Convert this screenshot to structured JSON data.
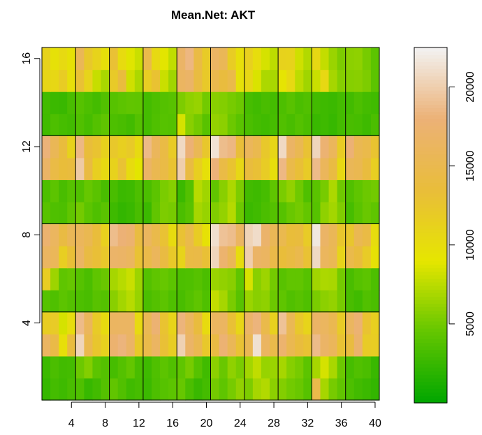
{
  "chart_data": {
    "type": "heatmap",
    "title": "Mean.Net:  AKT",
    "x_ticks": [
      4,
      8,
      12,
      16,
      20,
      24,
      28,
      32,
      36,
      40
    ],
    "y_ticks": [
      4,
      8,
      12,
      16
    ],
    "xlim": [
      0.5,
      40.5
    ],
    "ylim": [
      0.5,
      16.5
    ],
    "block_cols": 4,
    "block_rows": 4,
    "grid_blocks": true,
    "colorbar": {
      "position": "right",
      "ticks": [
        5000,
        10000,
        15000,
        20000
      ],
      "range": [
        0,
        22500
      ],
      "colors": [
        "#00a600",
        "#63c600",
        "#e6e600",
        "#e9bd3a",
        "#ecb176",
        "#f2f2f2"
      ]
    },
    "cells": [
      [
        2400,
        3100,
        2800,
        3300,
        3600,
        2500,
        3000,
        3800,
        4400,
        3700,
        2900,
        3200,
        2700,
        3500,
        3900,
        4200,
        4600,
        3400,
        2600,
        3100,
        5100,
        4300,
        5200,
        6100,
        5400,
        6800,
        7200,
        5900,
        5600,
        5000,
        4700,
        3900,
        14800,
        6800,
        5200,
        4400,
        3500,
        3000,
        2700,
        2300
      ],
      [
        2700,
        3400,
        3000,
        3100,
        4800,
        5600,
        4200,
        3800,
        3200,
        3800,
        4500,
        3300,
        2800,
        3600,
        4200,
        3700,
        4300,
        5200,
        3900,
        2900,
        5900,
        4700,
        6000,
        5300,
        6700,
        7700,
        6300,
        6400,
        6800,
        5700,
        5200,
        4200,
        6800,
        8400,
        6900,
        4800,
        3200,
        3700,
        3400,
        2600
      ],
      [
        16500,
        14500,
        9800,
        13800,
        20500,
        15000,
        12500,
        11300,
        17500,
        18200,
        16800,
        12200,
        14800,
        16500,
        13200,
        11700,
        20200,
        16900,
        15200,
        12300,
        14200,
        17800,
        15700,
        13000,
        15500,
        21300,
        16400,
        14800,
        17400,
        15200,
        13800,
        13000,
        18700,
        16800,
        16000,
        13000,
        13900,
        17200,
        12000,
        11700
      ],
      [
        11700,
        12000,
        8400,
        10000,
        18700,
        16000,
        12000,
        10200,
        16400,
        16500,
        16500,
        10300,
        15500,
        17700,
        12800,
        11000,
        18200,
        16300,
        13700,
        10200,
        16300,
        16400,
        13200,
        10800,
        17000,
        18200,
        14800,
        11300,
        19200,
        15500,
        12300,
        11000,
        16800,
        16300,
        15200,
        12000,
        16300,
        17700,
        12800,
        11500
      ],
      [
        3900,
        3600,
        4200,
        3800,
        3500,
        3300,
        4000,
        3800,
        5800,
        6700,
        7400,
        6300,
        3400,
        3800,
        4200,
        3600,
        3300,
        3800,
        4300,
        3600,
        7800,
        6800,
        5300,
        4000,
        6400,
        5800,
        6000,
        4800,
        4300,
        3700,
        4000,
        3600,
        5300,
        5900,
        6200,
        5200,
        3300,
        2900,
        3700,
        3400
      ],
      [
        11800,
        6500,
        4300,
        4600,
        3900,
        3400,
        4300,
        4700,
        6800,
        7400,
        8000,
        6500,
        3800,
        4300,
        4600,
        4200,
        3500,
        3600,
        3900,
        3400,
        6400,
        6100,
        5800,
        4300,
        8500,
        5800,
        6500,
        5100,
        4000,
        4400,
        4400,
        3900,
        6600,
        7000,
        6900,
        5100,
        3300,
        3900,
        4200,
        3500
      ],
      [
        16400,
        15800,
        11600,
        13300,
        16600,
        14200,
        13300,
        12300,
        17000,
        16800,
        16300,
        13000,
        14700,
        16000,
        14100,
        12200,
        11000,
        14300,
        14500,
        13200,
        20500,
        17400,
        15700,
        10100,
        20000,
        16800,
        16400,
        14600,
        13500,
        14200,
        14900,
        13000,
        20800,
        16200,
        15500,
        11000,
        14800,
        13700,
        12000,
        9500
      ],
      [
        17500,
        16300,
        14200,
        15600,
        16000,
        15200,
        13600,
        11300,
        18800,
        18000,
        17500,
        14000,
        16200,
        14800,
        13000,
        10200,
        13000,
        14800,
        11800,
        9500,
        21200,
        19200,
        18800,
        16500,
        20400,
        21000,
        17200,
        15600,
        15100,
        13500,
        13700,
        12000,
        21800,
        16800,
        15700,
        12500,
        12500,
        15300,
        14300,
        10100
      ],
      [
        4000,
        3600,
        3500,
        4400,
        5100,
        4200,
        3600,
        4100,
        2800,
        2300,
        2600,
        3300,
        2700,
        4400,
        5400,
        5200,
        3400,
        4000,
        6800,
        6300,
        5500,
        6200,
        7300,
        4800,
        2700,
        2900,
        3400,
        3800,
        3900,
        4700,
        5100,
        4500,
        3900,
        6000,
        6700,
        5500,
        3200,
        4100,
        4700,
        4300
      ],
      [
        3500,
        4200,
        3300,
        3900,
        3700,
        4600,
        4100,
        3300,
        3300,
        2700,
        2800,
        3500,
        3400,
        4200,
        5300,
        5700,
        2700,
        3800,
        7400,
        6600,
        4400,
        5800,
        7000,
        5400,
        3000,
        2800,
        3200,
        4300,
        5300,
        6100,
        4900,
        3600,
        4100,
        5200,
        7000,
        4900,
        3700,
        4300,
        4800,
        5000
      ],
      [
        16800,
        14400,
        13500,
        13800,
        19700,
        14100,
        11500,
        10300,
        11200,
        13000,
        10200,
        8900,
        16700,
        15200,
        14400,
        12800,
        20000,
        14200,
        11500,
        9700,
        18100,
        14400,
        12800,
        10600,
        13800,
        13200,
        11900,
        9900,
        18500,
        14700,
        13300,
        12000,
        18700,
        16000,
        14200,
        10500,
        15700,
        15200,
        13800,
        11600
      ],
      [
        18100,
        15600,
        13700,
        11200,
        18500,
        13600,
        12800,
        11200,
        12300,
        11500,
        12100,
        10300,
        18600,
        16000,
        14300,
        12000,
        20800,
        17900,
        15500,
        12400,
        21400,
        18800,
        18400,
        13400,
        16000,
        15100,
        12300,
        10800,
        20800,
        16700,
        15300,
        13000,
        20500,
        17700,
        16000,
        11800,
        17900,
        15400,
        14800,
        12800
      ],
      [
        2900,
        3500,
        3200,
        3000,
        3700,
        3200,
        3800,
        4300,
        3500,
        3300,
        3000,
        3800,
        3100,
        3600,
        3900,
        3800,
        8400,
        5800,
        5100,
        4000,
        6200,
        5900,
        4800,
        4100,
        3400,
        3100,
        2900,
        3200,
        3700,
        3300,
        3800,
        3400,
        2600,
        2800,
        2500,
        3100,
        3300,
        3200,
        2800,
        3400
      ],
      [
        3000,
        2700,
        2600,
        3300,
        3900,
        3500,
        3100,
        3700,
        3900,
        4200,
        4400,
        4300,
        3100,
        3500,
        3800,
        4000,
        5400,
        6000,
        6300,
        5000,
        5800,
        5600,
        5200,
        4800,
        3200,
        2900,
        3300,
        3100,
        3500,
        4000,
        3400,
        3700,
        3000,
        2800,
        2700,
        3100,
        3000,
        3500,
        3100,
        2900
      ],
      [
        10800,
        10600,
        11800,
        9800,
        13100,
        11000,
        7900,
        6900,
        12100,
        13800,
        8200,
        7000,
        11700,
        12900,
        8000,
        6600,
        16400,
        16900,
        14000,
        12200,
        14900,
        13800,
        14700,
        9600,
        10600,
        8600,
        7000,
        6900,
        9200,
        10400,
        7600,
        6600,
        8000,
        10500,
        6800,
        5700,
        5700,
        5800,
        5400,
        4200
      ],
      [
        11200,
        9600,
        10300,
        9500,
        15700,
        12300,
        11100,
        9700,
        13100,
        10200,
        8800,
        8000,
        14800,
        10400,
        8900,
        7700,
        16900,
        18400,
        14300,
        12000,
        16600,
        15700,
        11800,
        9800,
        11400,
        10000,
        8400,
        7600,
        11200,
        11100,
        8200,
        7200,
        10500,
        7800,
        6400,
        5400,
        5900,
        6000,
        5200,
        4200
      ]
    ]
  }
}
